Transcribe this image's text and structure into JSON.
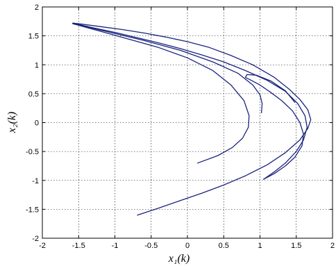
{
  "chart_data": {
    "type": "scatter",
    "title": "",
    "xlabel": "x₁(k)",
    "ylabel": "x₂(k)",
    "xlim": [
      -2,
      2
    ],
    "ylim": [
      -2,
      2
    ],
    "xticks": [
      -2,
      -1.5,
      -1,
      -0.5,
      0,
      0.5,
      1,
      1.5,
      2
    ],
    "yticks": [
      -2,
      -1.5,
      -1,
      -0.5,
      0,
      0.5,
      1,
      1.5,
      2
    ],
    "xtick_labels": [
      "-2",
      "-1.5",
      "-1",
      "-0.5",
      "0",
      "0.5",
      "1",
      "1.5",
      "2"
    ],
    "ytick_labels": [
      "-2",
      "-1.5",
      "-1",
      "-0.5",
      "0",
      "0.5",
      "1",
      "1.5",
      "2"
    ],
    "grid": true,
    "marker_color": "#1a237e",
    "series": [
      {
        "x": [
          -0.69,
          -0.4,
          -0.1,
          0.2,
          0.5,
          0.8,
          1.1,
          1.35,
          1.55,
          1.66,
          1.7,
          1.66,
          1.55,
          1.4,
          1.2,
          0.9,
          0.6,
          0.3,
          0.0,
          -0.3,
          -0.6,
          -0.9,
          -1.2,
          -1.5,
          -1.58
        ],
        "y": [
          -1.6,
          -1.48,
          -1.35,
          -1.22,
          -1.08,
          -0.92,
          -0.73,
          -0.52,
          -0.3,
          -0.1,
          0.05,
          0.22,
          0.4,
          0.58,
          0.78,
          1.0,
          1.16,
          1.3,
          1.4,
          1.48,
          1.55,
          1.61,
          1.66,
          1.71,
          1.72
        ]
      },
      {
        "x": [
          -1.58,
          -1.3,
          -1.0,
          -0.7,
          -0.4,
          -0.1,
          0.2,
          0.5,
          0.8,
          1.1,
          1.35,
          1.52,
          1.62,
          1.65,
          1.6,
          1.5,
          1.35,
          1.2,
          1.05
        ],
        "y": [
          1.72,
          1.64,
          1.56,
          1.47,
          1.38,
          1.28,
          1.17,
          1.05,
          0.9,
          0.73,
          0.54,
          0.33,
          0.12,
          -0.08,
          -0.3,
          -0.5,
          -0.7,
          -0.85,
          -0.98
        ]
      },
      {
        "x": [
          -1.58,
          -1.2,
          -0.8,
          -0.4,
          0.0,
          0.35,
          0.6,
          0.78,
          0.85,
          0.84,
          0.76,
          0.62,
          0.42,
          0.14
        ],
        "y": [
          1.71,
          1.58,
          1.44,
          1.3,
          1.12,
          0.9,
          0.65,
          0.38,
          0.12,
          -0.08,
          -0.27,
          -0.43,
          -0.57,
          -0.7
        ]
      },
      {
        "x": [
          -1.58,
          -1.1,
          -0.6,
          -0.1,
          0.35,
          0.7,
          0.9,
          1.0,
          1.03,
          1.02
        ],
        "y": [
          1.71,
          1.57,
          1.42,
          1.25,
          1.05,
          0.85,
          0.65,
          0.48,
          0.33,
          0.17
        ]
      },
      {
        "x": [
          1.48,
          1.35,
          1.15,
          0.95,
          0.82,
          0.8,
          0.88,
          1.0,
          1.15,
          1.3,
          1.45,
          1.55,
          1.6,
          1.58,
          1.48,
          1.35,
          1.2,
          1.05
        ],
        "y": [
          0.35,
          0.55,
          0.72,
          0.82,
          0.83,
          0.78,
          0.73,
          0.65,
          0.52,
          0.38,
          0.2,
          0.0,
          -0.2,
          -0.4,
          -0.6,
          -0.75,
          -0.88,
          -0.98
        ]
      }
    ]
  }
}
